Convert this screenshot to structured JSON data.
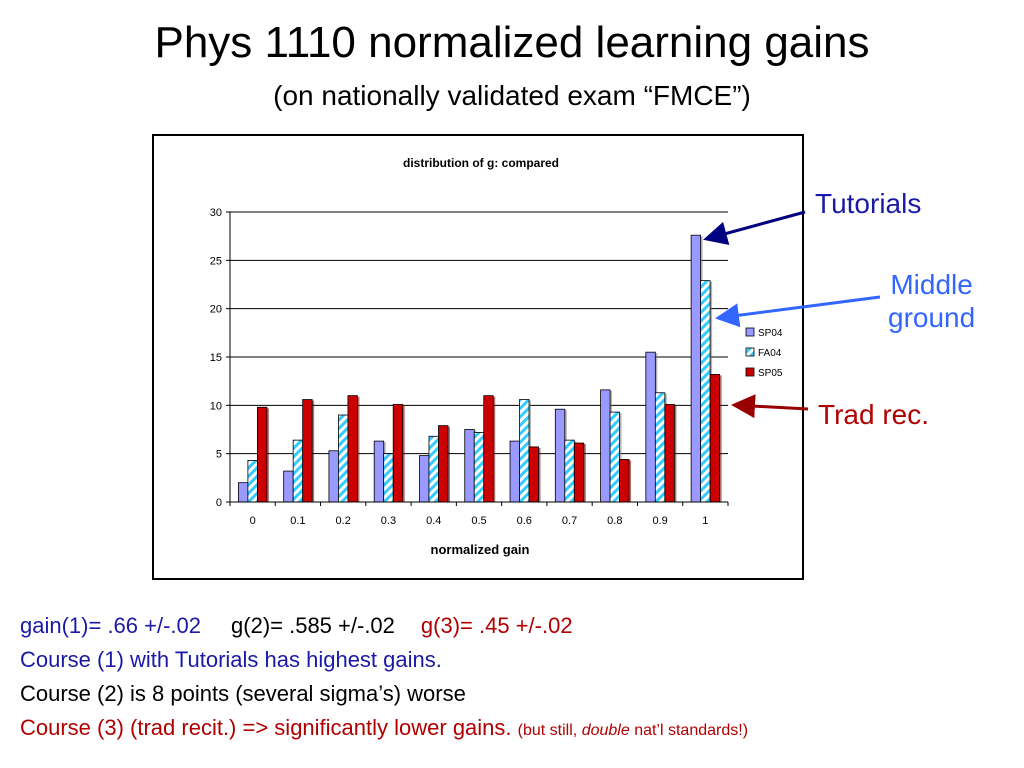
{
  "slide": {
    "title": "Phys 1110 normalized learning gains",
    "subtitle": "(on nationally validated exam “FMCE”)"
  },
  "annotations": {
    "tutorials": "Tutorials",
    "middle_line1": "Middle",
    "middle_line2": "ground",
    "trad": "Trad rec."
  },
  "bottom_text": {
    "line1_a": "gain(1)= .66 +/-.02",
    "line1_b": "g(2)= .585 +/-.02",
    "line1_c": "g(3)= .45 +/-.02",
    "line2": "Course (1) with Tutorials has highest gains.",
    "line3": "Course (2) is 8 points (several sigma’s) worse",
    "line4_main": "Course (3) (trad recit.) => significantly lower gains.",
    "line4_small_a": "(but still,",
    "line4_small_em": "double",
    "line4_small_b": "nat’l standards!)"
  },
  "colors": {
    "blue_text": "#1a1aa6",
    "red_text": "#b00000",
    "sp04": "#9999ff",
    "fa04_stripe": "#33ccff",
    "sp05": "#cc0000"
  },
  "chart_data": {
    "type": "bar",
    "title": "distribution of g: compared",
    "xlabel": "normalized gain",
    "ylabel": "",
    "ylim": [
      0,
      30
    ],
    "yticks": [
      0,
      5,
      10,
      15,
      20,
      25,
      30
    ],
    "grid": true,
    "legend_position": "right",
    "categories": [
      "0",
      "0.1",
      "0.2",
      "0.3",
      "0.4",
      "0.5",
      "0.6",
      "0.7",
      "0.8",
      "0.9",
      "1"
    ],
    "series": [
      {
        "name": "SP04",
        "values": [
          2.0,
          3.2,
          5.3,
          6.3,
          4.8,
          7.5,
          6.3,
          9.6,
          11.6,
          15.5,
          27.6
        ]
      },
      {
        "name": "FA04",
        "values": [
          4.3,
          6.4,
          9.0,
          5.0,
          6.8,
          7.2,
          10.6,
          6.4,
          9.3,
          11.3,
          22.9
        ]
      },
      {
        "name": "SP05",
        "values": [
          9.8,
          10.6,
          11.0,
          10.1,
          7.9,
          11.0,
          5.7,
          6.1,
          4.4,
          10.1,
          13.2
        ]
      }
    ]
  }
}
